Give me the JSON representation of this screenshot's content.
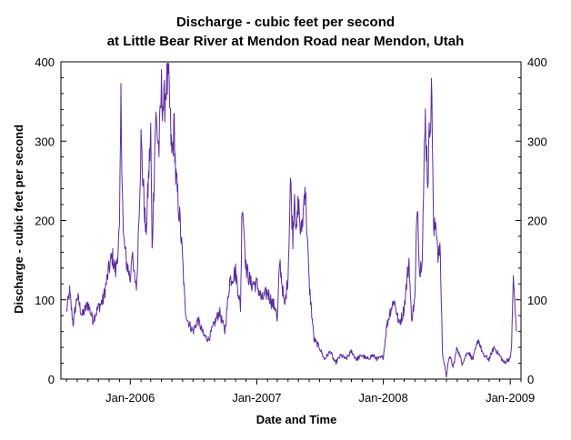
{
  "chart_data": {
    "type": "line",
    "title": "Discharge - cubic feet per second",
    "subtitle": "at Little Bear River at Mendon Road near Mendon, Utah",
    "xlabel": "Date and Time",
    "ylabel": "Discharge - cubic feet per second",
    "ylim": [
      0,
      400
    ],
    "yticks": [
      0,
      100,
      200,
      300,
      400
    ],
    "ytick_labels": [
      "0",
      "100",
      "200",
      "300",
      "400"
    ],
    "xlim": [
      "2005-06-15",
      "2009-02-01"
    ],
    "xticks": [
      "2006-01-01",
      "2007-01-01",
      "2008-01-01",
      "2009-01-01"
    ],
    "xtick_labels": [
      "Jan-2006",
      "Jan-2007",
      "Jan-2008",
      "Jan-2009"
    ],
    "grid": false,
    "secondary_y_axis": true,
    "color": "#5b2d9e",
    "series": [
      {
        "x": [
          "2005-07-01",
          "2005-07-10",
          "2005-07-20",
          "2005-08-01",
          "2005-08-15",
          "2005-09-01",
          "2005-09-15",
          "2005-10-01",
          "2005-10-15",
          "2005-11-01",
          "2005-11-10",
          "2005-11-20",
          "2005-12-01",
          "2005-12-05",
          "2005-12-12",
          "2005-12-20",
          "2005-12-28",
          "2006-01-01",
          "2006-01-05",
          "2006-01-12",
          "2006-01-20",
          "2006-02-01",
          "2006-02-15",
          "2006-03-01",
          "2006-03-05",
          "2006-03-15",
          "2006-03-25",
          "2006-04-01",
          "2006-04-08",
          "2006-04-15",
          "2006-04-22",
          "2006-05-01",
          "2006-05-08",
          "2006-05-12",
          "2006-05-18",
          "2006-05-25",
          "2006-06-01",
          "2006-06-08",
          "2006-06-15",
          "2006-06-25",
          "2006-07-01",
          "2006-07-15",
          "2006-08-01",
          "2006-08-15",
          "2006-09-01",
          "2006-09-15",
          "2006-10-01",
          "2006-10-15",
          "2006-11-01",
          "2006-11-15",
          "2006-11-20",
          "2006-12-01",
          "2006-12-15",
          "2007-01-01",
          "2007-01-15",
          "2007-02-01",
          "2007-02-15",
          "2007-02-25",
          "2007-03-01",
          "2007-03-08",
          "2007-03-15",
          "2007-03-22",
          "2007-04-01",
          "2007-04-08",
          "2007-04-15",
          "2007-04-20",
          "2007-04-25",
          "2007-05-01",
          "2007-05-08",
          "2007-05-15",
          "2007-05-20",
          "2007-06-01",
          "2007-06-15",
          "2007-07-01",
          "2007-07-15",
          "2007-08-01",
          "2007-08-15",
          "2007-09-01",
          "2007-09-15",
          "2007-10-01",
          "2007-10-15",
          "2007-11-01",
          "2007-11-15",
          "2007-12-01",
          "2007-12-15",
          "2008-01-01",
          "2008-01-10",
          "2008-01-20",
          "2008-02-01",
          "2008-02-15",
          "2008-02-25",
          "2008-03-01",
          "2008-03-08",
          "2008-03-15",
          "2008-03-22",
          "2008-04-01",
          "2008-04-08",
          "2008-04-15",
          "2008-04-22",
          "2008-05-01",
          "2008-05-08",
          "2008-05-15",
          "2008-05-20",
          "2008-05-25",
          "2008-06-01",
          "2008-06-08",
          "2008-06-12",
          "2008-06-15",
          "2008-06-20",
          "2008-07-01",
          "2008-07-10",
          "2008-07-20",
          "2008-08-01",
          "2008-08-15",
          "2008-09-01",
          "2008-09-15",
          "2008-10-01",
          "2008-10-15",
          "2008-11-01",
          "2008-11-15",
          "2008-12-01",
          "2008-12-15",
          "2008-12-25",
          "2009-01-01",
          "2009-01-05",
          "2009-01-10",
          "2009-01-15",
          "2009-01-20"
        ],
        "values": [
          85,
          110,
          70,
          105,
          80,
          95,
          75,
          90,
          100,
          140,
          155,
          135,
          185,
          350,
          180,
          150,
          135,
          125,
          160,
          130,
          118,
          300,
          180,
          310,
          160,
          330,
          290,
          365,
          340,
          375,
          370,
          280,
          320,
          255,
          230,
          195,
          150,
          90,
          75,
          65,
          60,
          75,
          55,
          50,
          70,
          85,
          60,
          125,
          135,
          90,
          230,
          140,
          120,
          120,
          100,
          110,
          95,
          90,
          70,
          150,
          120,
          90,
          130,
          250,
          180,
          240,
          180,
          225,
          180,
          210,
          250,
          120,
          50,
          40,
          25,
          35,
          20,
          30,
          25,
          35,
          25,
          30,
          25,
          30,
          25,
          28,
          65,
          85,
          100,
          70,
          80,
          90,
          120,
          150,
          75,
          100,
          230,
          130,
          160,
          330,
          250,
          335,
          360,
          180,
          200,
          150,
          170,
          120,
          30,
          5,
          30,
          15,
          40,
          20,
          35,
          25,
          50,
          30,
          25,
          40,
          30,
          20,
          25,
          25,
          45,
          130,
          85,
          60
        ]
      }
    ]
  }
}
